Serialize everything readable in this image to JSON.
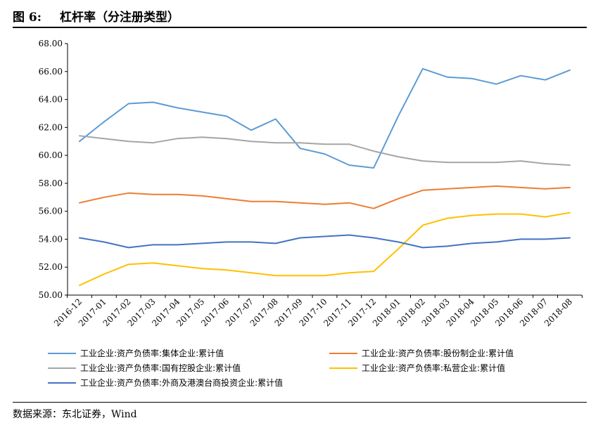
{
  "header": {
    "figure_label": "图 6:",
    "title": "杠杆率（分注册类型）"
  },
  "footer": {
    "source": "数据来源：东北证券，Wind"
  },
  "chart_data": {
    "type": "line",
    "title": "",
    "xlabel": "",
    "ylabel": "",
    "ylim": [
      50,
      68
    ],
    "yticks": [
      "50.00",
      "52.00",
      "54.00",
      "56.00",
      "58.00",
      "60.00",
      "62.00",
      "64.00",
      "66.00",
      "68.00"
    ],
    "grid": false,
    "legend_position": "bottom",
    "categories": [
      "2016-12",
      "2017-01",
      "2017-02",
      "2017-03",
      "2017-04",
      "2017-05",
      "2017-06",
      "2017-07",
      "2017-08",
      "2017-09",
      "2017-10",
      "2017-11",
      "2017-12",
      "2018-01",
      "2018-02",
      "2018-03",
      "2018-04",
      "2018-05",
      "2018-06",
      "2018-07",
      "2018-08"
    ],
    "series": [
      {
        "name": "工业企业:资产负债率:集体企业:累计值",
        "color": "#5B9BD5",
        "values": [
          61.0,
          62.4,
          63.7,
          63.8,
          63.4,
          63.1,
          62.8,
          61.8,
          62.6,
          60.5,
          60.1,
          59.3,
          59.1,
          62.8,
          66.2,
          65.6,
          65.5,
          65.1,
          65.7,
          65.4,
          66.1
        ]
      },
      {
        "name": "工业企业:资产负债率:股份制企业:累计值",
        "color": "#ED7D31",
        "values": [
          56.6,
          57.0,
          57.3,
          57.2,
          57.2,
          57.1,
          56.9,
          56.7,
          56.7,
          56.6,
          56.5,
          56.6,
          56.2,
          56.9,
          57.5,
          57.6,
          57.7,
          57.8,
          57.7,
          57.6,
          57.7
        ]
      },
      {
        "name": "工业企业:资产负债率:国有控股企业:累计值",
        "color": "#A5A5A5",
        "values": [
          61.4,
          61.2,
          61.0,
          60.9,
          61.2,
          61.3,
          61.2,
          61.0,
          60.9,
          60.9,
          60.8,
          60.8,
          60.3,
          59.9,
          59.6,
          59.5,
          59.5,
          59.5,
          59.6,
          59.4,
          59.3
        ]
      },
      {
        "name": "工业企业:资产负债率:私营企业:累计值",
        "color": "#FFC000",
        "values": [
          50.7,
          51.5,
          52.2,
          52.3,
          52.1,
          51.9,
          51.8,
          51.6,
          51.4,
          51.4,
          51.4,
          51.6,
          51.7,
          53.3,
          55.0,
          55.5,
          55.7,
          55.8,
          55.8,
          55.6,
          55.9
        ]
      },
      {
        "name": "工业企业:资产负债率:外商及港澳台商投资企业:累计值",
        "color": "#4472C4",
        "values": [
          54.1,
          53.8,
          53.4,
          53.6,
          53.6,
          53.7,
          53.8,
          53.8,
          53.7,
          54.1,
          54.2,
          54.3,
          54.1,
          53.8,
          53.4,
          53.5,
          53.7,
          53.8,
          54.0,
          54.0,
          54.1
        ]
      }
    ]
  }
}
